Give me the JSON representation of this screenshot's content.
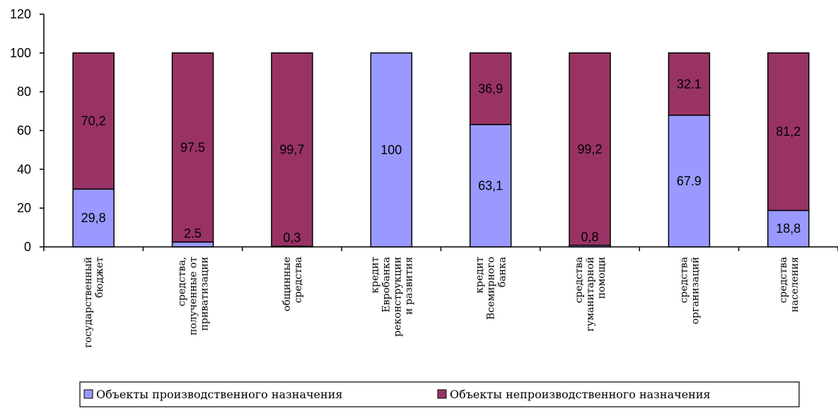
{
  "chart_data": {
    "type": "bar",
    "stacked": true,
    "categories": [
      [
        "государственный",
        "бюджет"
      ],
      [
        "средства,",
        "полученные от",
        "приватизации"
      ],
      [
        "общинные",
        "средства"
      ],
      [
        "кредит",
        "Евробанка",
        "реконструкции",
        "и развития"
      ],
      [
        "кредит",
        "Всемирного",
        "банка"
      ],
      [
        "средства",
        "гуманитарной",
        "помощи"
      ],
      [
        "средства",
        "организаций"
      ],
      [
        "средства",
        "населения"
      ]
    ],
    "series": [
      {
        "name": "Объекты производственного назначения",
        "color": "#9999ff",
        "values": [
          29.8,
          2.5,
          0.3,
          100,
          63.1,
          0.8,
          67.9,
          18.8
        ],
        "labels": [
          "29,8",
          "2.5",
          "0,3",
          "100",
          "63,1",
          "0,8",
          "67.9",
          "18,8"
        ]
      },
      {
        "name": "Объекты непроизводственного назначения",
        "color": "#993366",
        "values": [
          70.2,
          97.5,
          99.7,
          0,
          36.9,
          99.2,
          32.1,
          81.2
        ],
        "labels": [
          "70,2",
          "97.5",
          "99,7",
          "",
          "36,9",
          "99,2",
          "32.1",
          "81,2"
        ]
      }
    ],
    "ylim": [
      0,
      120
    ],
    "yticks": [
      "0",
      "20",
      "40",
      "60",
      "80",
      "100",
      "120"
    ],
    "grid": false,
    "legend": "bottom"
  }
}
